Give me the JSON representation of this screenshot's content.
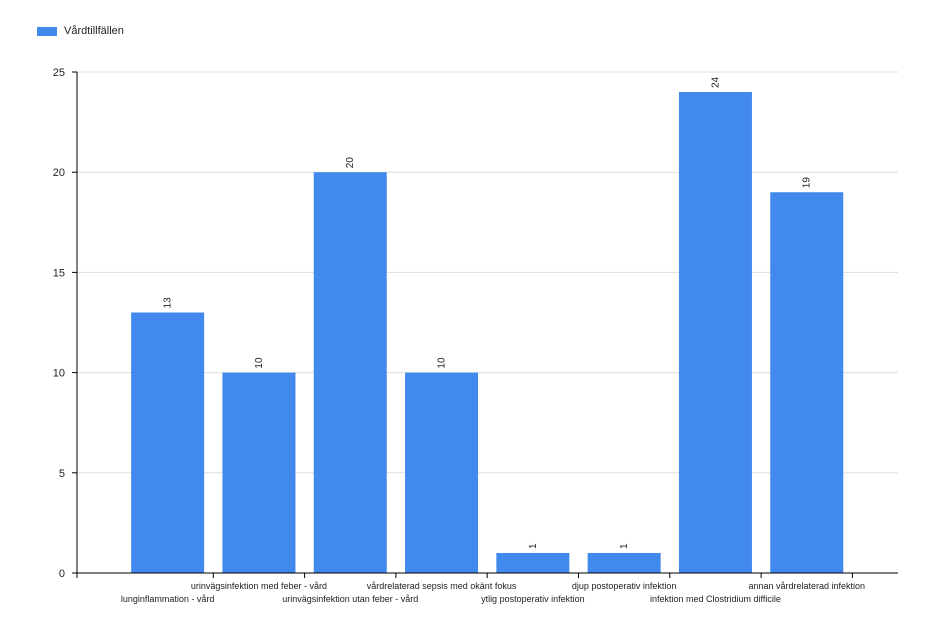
{
  "colors": {
    "bar": "#4189ec",
    "grid": "#dddddd",
    "axis": "#000000"
  },
  "legend": {
    "label": "Vårdtillfällen"
  },
  "chart_data": {
    "type": "bar",
    "categories": [
      "lunginflammation - vård",
      "urinvägsinfektion med feber - vård",
      "urinvägsinfektion utan feber - vård",
      "vårdrelaterad sepsis med okänt fokus",
      "ytlig postoperativ infektion",
      "djup postoperativ infektion",
      "infektion med Clostridium difficile",
      "annan vårdrelaterad infektion"
    ],
    "series": [
      {
        "name": "Vårdtillfällen",
        "values": [
          13,
          10,
          20,
          10,
          1,
          1,
          24,
          19
        ]
      }
    ],
    "ylim": [
      0,
      25
    ],
    "yticks": [
      "0",
      "5",
      "10",
      "15",
      "20",
      "25"
    ],
    "grid": true,
    "legend_position": "top-left",
    "data_labels": true
  }
}
